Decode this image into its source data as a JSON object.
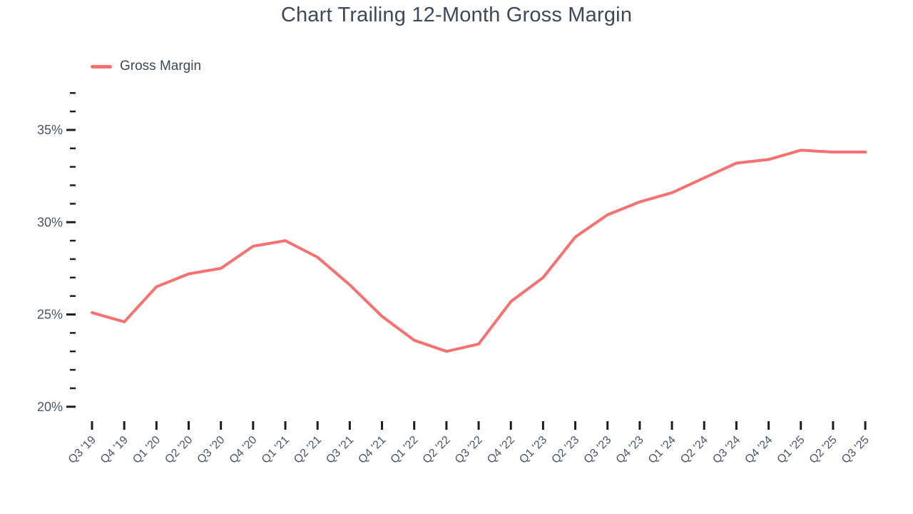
{
  "chart_data": {
    "type": "line",
    "title": "Chart Trailing 12-Month Gross Margin",
    "xlabel": "",
    "ylabel": "",
    "categories": [
      "Q3 '19",
      "Q4 '19",
      "Q1 '20",
      "Q2 '20",
      "Q3 '20",
      "Q4 '20",
      "Q1 '21",
      "Q2 '21",
      "Q3 '21",
      "Q4 '21",
      "Q1 '22",
      "Q2 '22",
      "Q3 '22",
      "Q4 '22",
      "Q1 '23",
      "Q2 '23",
      "Q3 '23",
      "Q4 '23",
      "Q1 '24",
      "Q2 '24",
      "Q3 '24",
      "Q4 '24",
      "Q1 '25",
      "Q2 '25",
      "Q3 '25"
    ],
    "series": [
      {
        "name": "Gross Margin",
        "color": "#f87171",
        "values": [
          25.1,
          24.6,
          26.5,
          27.2,
          27.5,
          28.7,
          29.0,
          28.1,
          26.6,
          24.9,
          23.6,
          23.0,
          23.4,
          25.7,
          27.0,
          29.2,
          30.4,
          31.1,
          31.6,
          32.4,
          33.2,
          33.4,
          33.9,
          33.8,
          33.8
        ]
      }
    ],
    "y_axis": {
      "min": 20,
      "max": 37,
      "major_tick_values": [
        20,
        25,
        30,
        35
      ],
      "major_tick_labels": [
        "20%",
        "25%",
        "30%",
        "35%"
      ],
      "minor_tick_step": 1,
      "unit_suffix": "%"
    },
    "x_axis": {
      "tick_label_rotation_deg": -45
    },
    "legend": {
      "position": "top-left",
      "entries": [
        "Gross Margin"
      ]
    },
    "grid": false
  },
  "styles": {
    "line_color": "#f87171",
    "text_color": "#3d495a",
    "axis_text_color": "#48546a",
    "tick_color": "#1b1f24",
    "background": "#ffffff"
  }
}
